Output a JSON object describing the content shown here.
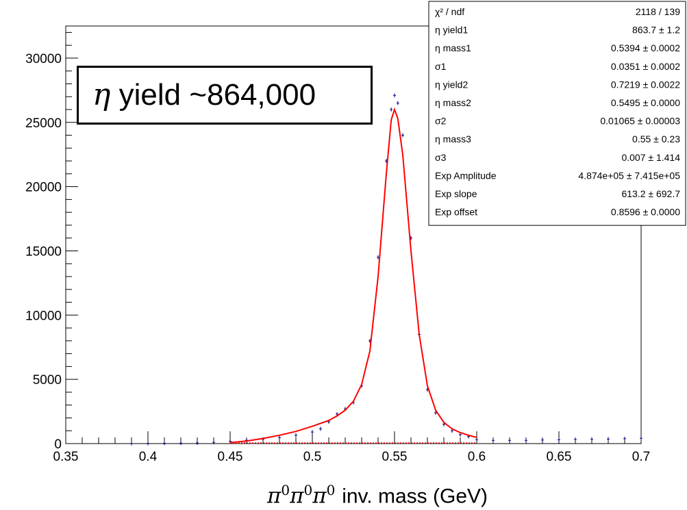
{
  "chart_data": {
    "type": "histogram",
    "x_range": [
      0.35,
      0.7
    ],
    "y_range": [
      0,
      32500
    ],
    "x_ticks": [
      "0.35",
      "0.4",
      "0.45",
      "0.5",
      "0.55",
      "0.6",
      "0.65",
      "0.7"
    ],
    "y_ticks": [
      "0",
      "5000",
      "10000",
      "15000",
      "20000",
      "25000",
      "30000"
    ],
    "xlabel_symbol": "π",
    "xlabel_sup": "0",
    "xlabel_rest": "inv. mass (GeV)",
    "annotation_symbol": "η",
    "annotation_text": "yield ~864,000",
    "histogram": {
      "color": "#000080",
      "points": [
        [
          0.39,
          10
        ],
        [
          0.4,
          20
        ],
        [
          0.41,
          30
        ],
        [
          0.42,
          40
        ],
        [
          0.43,
          60
        ],
        [
          0.44,
          100
        ],
        [
          0.45,
          180
        ],
        [
          0.46,
          260
        ],
        [
          0.47,
          340
        ],
        [
          0.48,
          470
        ],
        [
          0.49,
          650
        ],
        [
          0.5,
          900
        ],
        [
          0.505,
          1150
        ],
        [
          0.51,
          1700
        ],
        [
          0.515,
          2300
        ],
        [
          0.52,
          2700
        ],
        [
          0.525,
          3200
        ],
        [
          0.53,
          4500
        ],
        [
          0.535,
          8000
        ],
        [
          0.54,
          14500
        ],
        [
          0.545,
          22000
        ],
        [
          0.548,
          26000
        ],
        [
          0.55,
          27100
        ],
        [
          0.552,
          26500
        ],
        [
          0.555,
          24000
        ],
        [
          0.56,
          16000
        ],
        [
          0.565,
          8500
        ],
        [
          0.57,
          4200
        ],
        [
          0.575,
          2400
        ],
        [
          0.58,
          1500
        ],
        [
          0.585,
          1000
        ],
        [
          0.59,
          700
        ],
        [
          0.595,
          550
        ],
        [
          0.6,
          300
        ],
        [
          0.61,
          250
        ],
        [
          0.62,
          250
        ],
        [
          0.63,
          250
        ],
        [
          0.64,
          280
        ],
        [
          0.65,
          300
        ],
        [
          0.66,
          320
        ],
        [
          0.67,
          330
        ],
        [
          0.68,
          350
        ],
        [
          0.69,
          380
        ],
        [
          0.7,
          420
        ]
      ]
    },
    "fit": {
      "color": "#ff0000",
      "points": [
        [
          0.45,
          80
        ],
        [
          0.46,
          200
        ],
        [
          0.47,
          400
        ],
        [
          0.48,
          650
        ],
        [
          0.49,
          950
        ],
        [
          0.5,
          1350
        ],
        [
          0.51,
          1800
        ],
        [
          0.515,
          2150
        ],
        [
          0.52,
          2600
        ],
        [
          0.525,
          3300
        ],
        [
          0.53,
          4600
        ],
        [
          0.535,
          7200
        ],
        [
          0.54,
          13000
        ],
        [
          0.545,
          21000
        ],
        [
          0.548,
          25200
        ],
        [
          0.55,
          26000
        ],
        [
          0.552,
          25300
        ],
        [
          0.555,
          22500
        ],
        [
          0.56,
          15000
        ],
        [
          0.565,
          8500
        ],
        [
          0.57,
          4500
        ],
        [
          0.575,
          2600
        ],
        [
          0.58,
          1650
        ],
        [
          0.585,
          1150
        ],
        [
          0.59,
          850
        ],
        [
          0.595,
          650
        ],
        [
          0.6,
          480
        ]
      ],
      "baseline": {
        "x_from": 0.45,
        "x_to": 0.6,
        "y": 0
      }
    },
    "stats_box": {
      "rows": [
        {
          "label": "χ² / ndf",
          "value": "2118 / 139"
        },
        {
          "label": "η yield1",
          "value": "863.7 ± 1.2"
        },
        {
          "label": "η mass1",
          "value": "0.5394 ± 0.0002"
        },
        {
          "label": "σ1",
          "value": "0.0351 ± 0.0002"
        },
        {
          "label": "η yield2",
          "value": "0.7219 ± 0.0022"
        },
        {
          "label": "η mass2",
          "value": "0.5495 ± 0.0000"
        },
        {
          "label": "σ2",
          "value": "0.01065 ± 0.00003"
        },
        {
          "label": "η mass3",
          "value": "0.55 ± 0.23"
        },
        {
          "label": "σ3",
          "value": "0.007 ± 1.414"
        },
        {
          "label": "Exp Amplitude",
          "value": "4.874e+05 ± 7.415e+05"
        },
        {
          "label": "Exp slope",
          "value": "613.2 ± 692.7"
        },
        {
          "label": "Exp offset",
          "value": "0.8596 ± 0.0000"
        }
      ]
    }
  }
}
